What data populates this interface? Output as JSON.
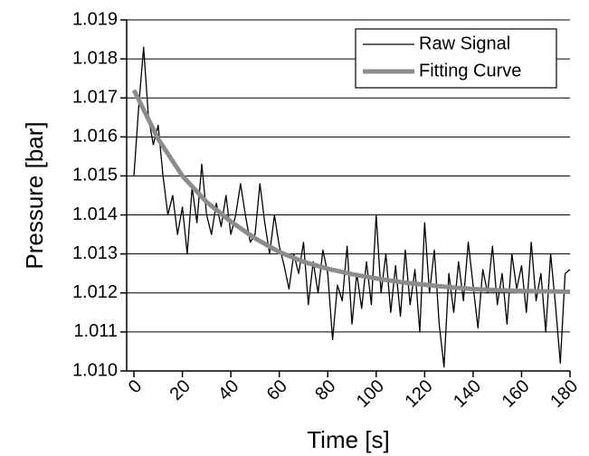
{
  "chart_data": {
    "type": "line",
    "x_label": "Time [s]",
    "y_label": "Pressure [bar]",
    "xlim": [
      -3,
      180
    ],
    "xticks": [
      0,
      20,
      40,
      60,
      80,
      100,
      120,
      140,
      160,
      180
    ],
    "ylim": [
      1.01,
      1.019
    ],
    "yticks": [
      {
        "value": 1.01,
        "label": "1.010"
      },
      1.011,
      1.012,
      1.013,
      1.014,
      1.015,
      1.016,
      1.017,
      1.018,
      1.019
    ],
    "grid": true,
    "legend": "upper right",
    "series": [
      {
        "name": "Raw Signal",
        "color": "#000000",
        "width": 1.3,
        "x": [
          0,
          2,
          4,
          6,
          8,
          10,
          12,
          14,
          16,
          18,
          20,
          22,
          24,
          26,
          28,
          30,
          32,
          34,
          36,
          38,
          40,
          42,
          44,
          46,
          48,
          50,
          52,
          54,
          56,
          58,
          60,
          62,
          64,
          66,
          68,
          70,
          72,
          74,
          76,
          78,
          80,
          82,
          84,
          86,
          88,
          90,
          92,
          94,
          96,
          98,
          100,
          102,
          104,
          106,
          108,
          110,
          112,
          114,
          116,
          118,
          120,
          122,
          124,
          126,
          128,
          130,
          132,
          134,
          136,
          138,
          140,
          142,
          144,
          146,
          148,
          150,
          152,
          154,
          156,
          158,
          160,
          162,
          164,
          166,
          168,
          170,
          172,
          174,
          176,
          178,
          180
        ],
        "values": [
          1.015,
          1.0168,
          1.0183,
          1.0165,
          1.0158,
          1.0163,
          1.015,
          1.014,
          1.0145,
          1.0135,
          1.0142,
          1.013,
          1.0147,
          1.0138,
          1.0153,
          1.014,
          1.0135,
          1.0143,
          1.0137,
          1.0145,
          1.0135,
          1.014,
          1.0148,
          1.014,
          1.0133,
          1.0135,
          1.0148,
          1.0138,
          1.013,
          1.014,
          1.0132,
          1.0127,
          1.0121,
          1.013,
          1.0125,
          1.0133,
          1.0117,
          1.0128,
          1.012,
          1.0131,
          1.0125,
          1.0108,
          1.0122,
          1.0118,
          1.0132,
          1.0112,
          1.0125,
          1.0116,
          1.0128,
          1.0117,
          1.014,
          1.012,
          1.013,
          1.0115,
          1.0127,
          1.0114,
          1.0131,
          1.0117,
          1.0126,
          1.011,
          1.0138,
          1.012,
          1.0131,
          1.0112,
          1.0101,
          1.0125,
          1.0115,
          1.0128,
          1.0118,
          1.0133,
          1.0122,
          1.0111,
          1.0126,
          1.012,
          1.0132,
          1.0117,
          1.0125,
          1.0112,
          1.013,
          1.0121,
          1.0127,
          1.0115,
          1.0133,
          1.0118,
          1.0125,
          1.011,
          1.013,
          1.0117,
          1.0102,
          1.0125,
          1.0126
        ]
      },
      {
        "name": "Fitting Curve",
        "color": "#8c8c8c",
        "width": 5,
        "x": [
          0,
          10,
          20,
          30,
          40,
          50,
          60,
          70,
          80,
          90,
          100,
          110,
          120,
          130,
          140,
          150,
          160,
          170,
          180
        ],
        "values": [
          1.0172,
          1.01595,
          1.015,
          1.01433,
          1.01383,
          1.0134,
          1.01305,
          1.0128,
          1.01262,
          1.01248,
          1.01237,
          1.01228,
          1.01221,
          1.01215,
          1.0121,
          1.01207,
          1.01205,
          1.01204,
          1.01203
        ]
      }
    ]
  }
}
